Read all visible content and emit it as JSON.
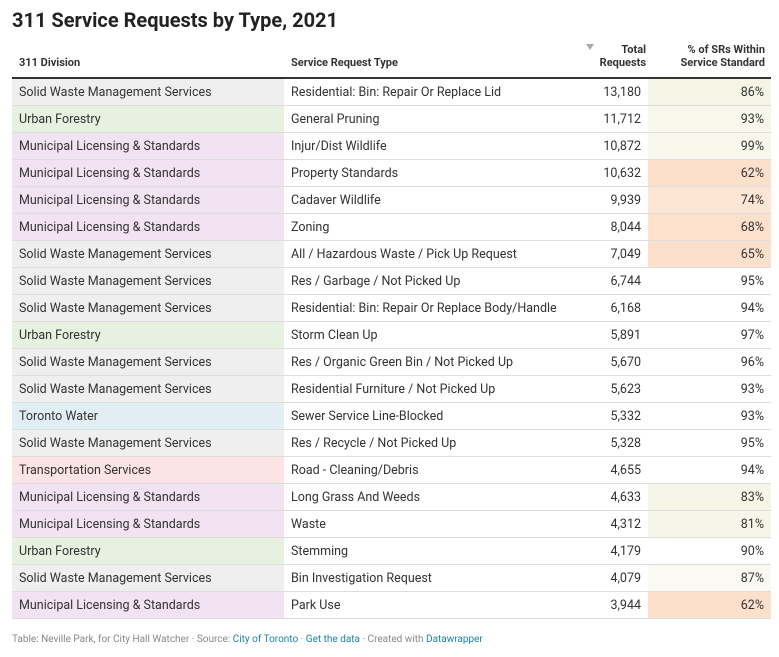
{
  "header": {
    "title": "311 Service Requests by Type, 2021"
  },
  "table": {
    "columns": [
      "311 Division",
      "Service Request Type",
      "Total Requests",
      "% of SRs Within Service Standard"
    ],
    "division_colors": {
      "Solid Waste Management Services": "#efefef",
      "Urban Forestry": "#e6f2df",
      "Municipal Licensing & Standards": "#f1e3f2",
      "Toronto Water": "#e1eff5",
      "Transportation Services": "#fde4e4"
    },
    "rows": [
      [
        "Solid Waste Management Services",
        "Residential: Bin: Repair Or Replace Lid",
        "13,180",
        "86%"
      ],
      [
        "Urban Forestry",
        "General Pruning",
        "11,712",
        "93%"
      ],
      [
        "Municipal Licensing & Standards",
        "Injur/Dist Wildlife",
        "10,872",
        "99%"
      ],
      [
        "Municipal Licensing & Standards",
        "Property Standards",
        "10,632",
        "62%"
      ],
      [
        "Municipal Licensing & Standards",
        "Cadaver Wildlife",
        "9,939",
        "74%"
      ],
      [
        "Municipal Licensing & Standards",
        "Zoning",
        "8,044",
        "68%"
      ],
      [
        "Solid Waste Management Services",
        "All / Hazardous Waste / Pick Up Request",
        "7,049",
        "65%"
      ],
      [
        "Solid Waste Management Services",
        "Res / Garbage / Not Picked Up",
        "6,744",
        "95%"
      ],
      [
        "Solid Waste Management Services",
        "Residential: Bin: Repair Or Replace Body/Handle",
        "6,168",
        "94%"
      ],
      [
        "Urban Forestry",
        "Storm Clean Up",
        "5,891",
        "97%"
      ],
      [
        "Solid Waste Management Services",
        "Res / Organic Green Bin / Not Picked Up",
        "5,670",
        "96%"
      ],
      [
        "Solid Waste Management Services",
        "Residential Furniture / Not Picked Up",
        "5,623",
        "93%"
      ],
      [
        "Toronto Water",
        "Sewer Service Line-Blocked",
        "5,332",
        "93%"
      ],
      [
        "Solid Waste Management Services",
        "Res / Recycle / Not Picked Up",
        "5,328",
        "95%"
      ],
      [
        "Transportation Services",
        "Road - Cleaning/Debris",
        "4,655",
        "94%"
      ],
      [
        "Municipal Licensing & Standards",
        "Long Grass And Weeds",
        "4,633",
        "83%"
      ],
      [
        "Municipal Licensing & Standards",
        "Waste",
        "4,312",
        "81%"
      ],
      [
        "Urban Forestry",
        "Stemming",
        "4,179",
        "90%"
      ],
      [
        "Solid Waste Management Services",
        "Bin Investigation Request",
        "4,079",
        "87%"
      ],
      [
        "Municipal Licensing & Standards",
        "Park Use",
        "3,944",
        "62%"
      ]
    ],
    "pct_colors": [
      "#f5f5e6",
      "#f7f7ec",
      "#f7f7ec",
      "#fde0cb",
      "#fde6d3",
      "#fde1cd",
      "#fde0cb",
      "#ffffff",
      "#ffffff",
      "#ffffff",
      "#ffffff",
      "#ffffff",
      "#ffffff",
      "#ffffff",
      "#ffffff",
      "#f6f6e8",
      "#f6f6e8",
      "#ffffff",
      "#fafaf2",
      "#fde0cb"
    ]
  },
  "footer": {
    "prefix": "Table: Neville Park, for City Hall Watcher · Source: ",
    "source": "City of Toronto",
    "sep1": " · ",
    "data_link": "Get the data",
    "sep2": " · Created with ",
    "tool": "Datawrapper"
  }
}
